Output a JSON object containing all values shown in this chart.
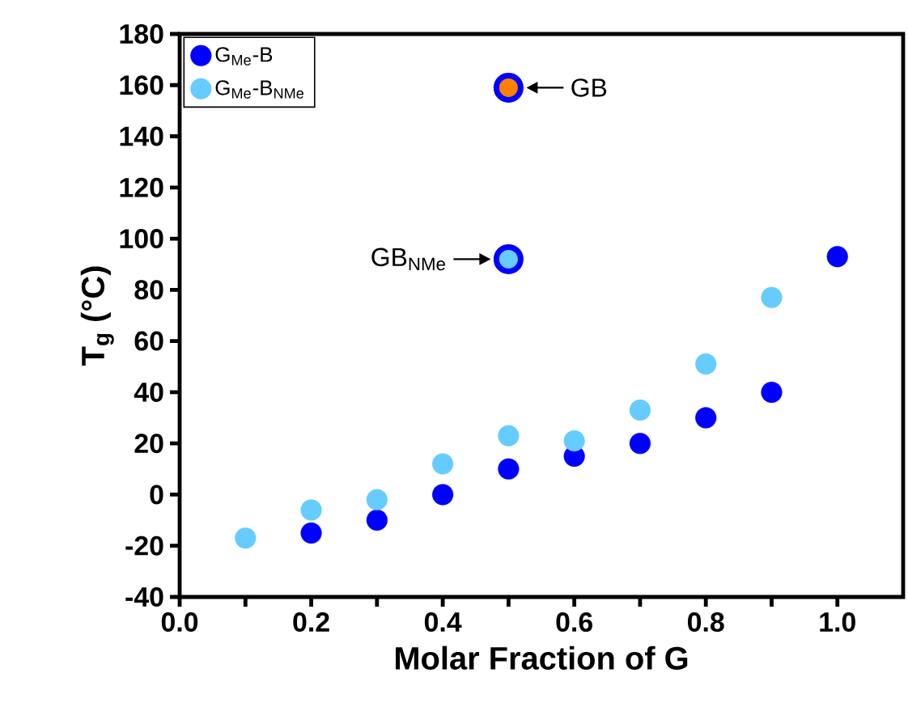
{
  "chart_data": {
    "type": "scatter",
    "xlabel": "Molar Fraction of G",
    "ylabel": "T$_{g}$ (°C)",
    "xlim": [
      0,
      1.1
    ],
    "ylim": [
      -40,
      180
    ],
    "xticks": [
      {
        "value": 0,
        "label": "0.0"
      },
      {
        "value": 0.1,
        "label": null
      },
      {
        "value": 0.2,
        "label": "0.2"
      },
      {
        "value": 0.3,
        "label": null
      },
      {
        "value": 0.4,
        "label": "0.4"
      },
      {
        "value": 0.5,
        "label": null
      },
      {
        "value": 0.6,
        "label": "0.6"
      },
      {
        "value": 0.7,
        "label": null
      },
      {
        "value": 0.8,
        "label": "0.8"
      },
      {
        "value": 0.9,
        "label": null
      },
      {
        "value": 1.0,
        "label": "1.0"
      }
    ],
    "yticks": [
      -40,
      -20,
      0,
      20,
      40,
      60,
      80,
      100,
      120,
      140,
      160,
      180
    ],
    "marker": "circle",
    "legend": "top left",
    "grid": false,
    "series": [
      {
        "name": "G$_{Me}$-B",
        "color": "#0000ff",
        "x": [
          0.2,
          0.3,
          0.4,
          0.5,
          0.6,
          0.7,
          0.8,
          0.9,
          1.0
        ],
        "values": [
          -15,
          -10,
          0,
          10,
          15,
          20,
          30,
          40,
          93
        ]
      },
      {
        "name": "G$_{Me}$-B$_{NMe}$",
        "color": "#66ccff",
        "x": [
          0.1,
          0.2,
          0.3,
          0.4,
          0.5,
          0.6,
          0.7,
          0.8,
          0.9
        ],
        "values": [
          -17,
          -6,
          -2,
          12,
          23,
          21,
          33,
          51,
          77
        ]
      },
      {
        "color": "#ff8000",
        "x": [
          0.5
        ],
        "values": [
          159
        ]
      },
      {
        "color": "#66ccff",
        "x": [
          0.5
        ],
        "values": [
          92
        ]
      }
    ],
    "annotations": [
      {
        "text": "GB",
        "x": 0.5,
        "y": 159
      },
      {
        "text": "GB$_{NMe}$",
        "x": 0.5,
        "y": 92
      }
    ]
  }
}
